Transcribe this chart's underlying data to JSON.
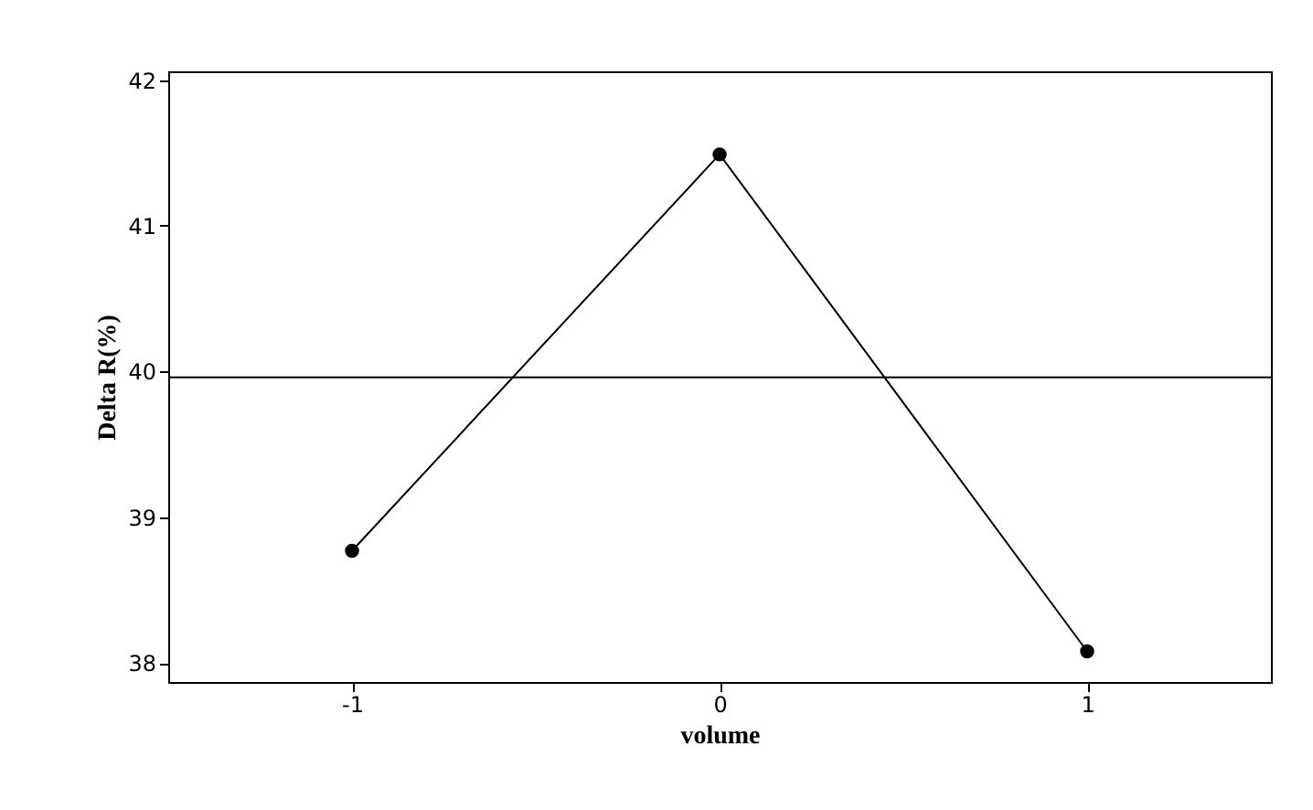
{
  "chart_data": {
    "type": "line",
    "xlabel": "volume",
    "ylabel": "Delta R(%)",
    "x": [
      -1,
      0,
      1
    ],
    "series": [
      {
        "color": "#000000",
        "values": [
          38.77,
          41.49,
          38.08
        ]
      }
    ],
    "xlim": [
      -1.5,
      1.5
    ],
    "xticks": [
      -1,
      0,
      1
    ],
    "ylim": [
      37.87,
      42.06
    ],
    "yticks": [
      38,
      39,
      40,
      41,
      42
    ],
    "ref_lines": [
      {
        "axis": "y",
        "value": 39.96,
        "color": "#000000"
      }
    ],
    "marker": "circle",
    "line_style": "solid",
    "grid": false,
    "legend": false
  }
}
